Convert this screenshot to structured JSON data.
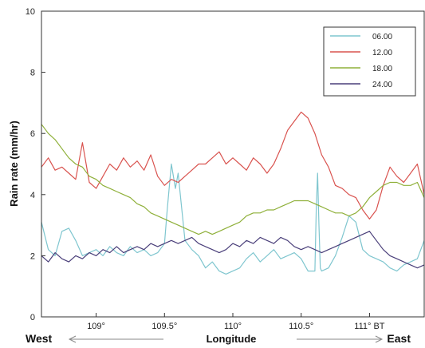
{
  "chart_data": {
    "type": "line",
    "title": "",
    "xlabel": "Longitude",
    "ylabel": "Rain rate (mm/hr)",
    "direction_west": "West",
    "direction_east": "East",
    "xlim": [
      108.6,
      111.4
    ],
    "ylim": [
      0,
      10
    ],
    "x_ticks": [
      {
        "value": 109.0,
        "label": "109°"
      },
      {
        "value": 109.5,
        "label": "109.5°"
      },
      {
        "value": 110.0,
        "label": "110°"
      },
      {
        "value": 110.5,
        "label": "110.5°"
      },
      {
        "value": 111.0,
        "label": "111° BT"
      }
    ],
    "y_ticks": [
      {
        "value": 0,
        "label": "0"
      },
      {
        "value": 2,
        "label": "2"
      },
      {
        "value": 4,
        "label": "4"
      },
      {
        "value": 6,
        "label": "6"
      },
      {
        "value": 8,
        "label": "8"
      },
      {
        "value": 10,
        "label": "10"
      }
    ],
    "grid": false,
    "legend_position": "top-right",
    "series": [
      {
        "name": "06.00",
        "color": "#7fc6cf",
        "x": [
          108.6,
          108.65,
          108.7,
          108.75,
          108.8,
          108.85,
          108.9,
          108.95,
          109.0,
          109.05,
          109.1,
          109.15,
          109.2,
          109.25,
          109.3,
          109.35,
          109.4,
          109.45,
          109.5,
          109.52,
          109.55,
          109.58,
          109.6,
          109.62,
          109.65,
          109.7,
          109.75,
          109.8,
          109.85,
          109.9,
          109.95,
          110.0,
          110.05,
          110.1,
          110.15,
          110.2,
          110.25,
          110.3,
          110.35,
          110.4,
          110.45,
          110.5,
          110.55,
          110.6,
          110.61,
          110.62,
          110.63,
          110.64,
          110.65,
          110.7,
          110.75,
          110.8,
          110.85,
          110.9,
          110.95,
          111.0,
          111.05,
          111.1,
          111.15,
          111.2,
          111.25,
          111.3,
          111.35,
          111.4
        ],
        "y": [
          3.1,
          2.2,
          2.0,
          2.8,
          2.9,
          2.5,
          2.0,
          2.1,
          2.2,
          2.0,
          2.3,
          2.1,
          2.0,
          2.3,
          2.1,
          2.2,
          2.0,
          2.1,
          2.4,
          3.5,
          5.0,
          4.2,
          4.7,
          3.8,
          2.5,
          2.2,
          2.0,
          1.6,
          1.8,
          1.5,
          1.4,
          1.5,
          1.6,
          1.9,
          2.1,
          1.8,
          2.0,
          2.2,
          1.9,
          2.0,
          2.1,
          1.9,
          1.5,
          1.5,
          3.5,
          4.7,
          3.0,
          1.6,
          1.5,
          1.6,
          2.0,
          2.6,
          3.3,
          3.1,
          2.2,
          2.0,
          1.9,
          1.8,
          1.6,
          1.5,
          1.7,
          1.8,
          1.9,
          2.5
        ]
      },
      {
        "name": "12.00",
        "color": "#d9534f",
        "x": [
          108.6,
          108.65,
          108.7,
          108.75,
          108.8,
          108.85,
          108.9,
          108.95,
          109.0,
          109.05,
          109.1,
          109.15,
          109.2,
          109.25,
          109.3,
          109.35,
          109.4,
          109.45,
          109.5,
          109.55,
          109.6,
          109.65,
          109.7,
          109.75,
          109.8,
          109.85,
          109.9,
          109.95,
          110.0,
          110.05,
          110.1,
          110.15,
          110.2,
          110.25,
          110.3,
          110.35,
          110.4,
          110.45,
          110.5,
          110.55,
          110.6,
          110.65,
          110.7,
          110.75,
          110.8,
          110.85,
          110.9,
          110.95,
          111.0,
          111.05,
          111.1,
          111.15,
          111.2,
          111.25,
          111.3,
          111.35,
          111.4
        ],
        "y": [
          4.9,
          5.2,
          4.8,
          4.9,
          4.7,
          4.5,
          5.7,
          4.4,
          4.2,
          4.6,
          5.0,
          4.8,
          5.2,
          4.9,
          5.1,
          4.8,
          5.3,
          4.6,
          4.3,
          4.5,
          4.4,
          4.6,
          4.8,
          5.0,
          5.0,
          5.2,
          5.4,
          5.0,
          5.2,
          5.0,
          4.8,
          5.2,
          5.0,
          4.7,
          5.0,
          5.5,
          6.1,
          6.4,
          6.7,
          6.5,
          6.0,
          5.3,
          4.9,
          4.3,
          4.2,
          4.0,
          3.9,
          3.5,
          3.2,
          3.5,
          4.3,
          4.9,
          4.6,
          4.4,
          4.7,
          5.0,
          4.0
        ]
      },
      {
        "name": "18.00",
        "color": "#8fb03a",
        "x": [
          108.6,
          108.65,
          108.7,
          108.75,
          108.8,
          108.85,
          108.9,
          108.95,
          109.0,
          109.05,
          109.1,
          109.15,
          109.2,
          109.25,
          109.3,
          109.35,
          109.4,
          109.45,
          109.5,
          109.55,
          109.6,
          109.65,
          109.7,
          109.75,
          109.8,
          109.85,
          109.9,
          109.95,
          110.0,
          110.05,
          110.1,
          110.15,
          110.2,
          110.25,
          110.3,
          110.35,
          110.4,
          110.45,
          110.5,
          110.55,
          110.6,
          110.65,
          110.7,
          110.75,
          110.8,
          110.85,
          110.9,
          110.95,
          111.0,
          111.05,
          111.1,
          111.15,
          111.2,
          111.25,
          111.3,
          111.35,
          111.4
        ],
        "y": [
          6.3,
          6.0,
          5.8,
          5.5,
          5.2,
          5.0,
          4.9,
          4.6,
          4.5,
          4.3,
          4.2,
          4.1,
          4.0,
          3.9,
          3.7,
          3.6,
          3.4,
          3.3,
          3.2,
          3.1,
          3.0,
          2.9,
          2.8,
          2.7,
          2.8,
          2.7,
          2.8,
          2.9,
          3.0,
          3.1,
          3.3,
          3.4,
          3.4,
          3.5,
          3.5,
          3.6,
          3.7,
          3.8,
          3.8,
          3.8,
          3.7,
          3.6,
          3.5,
          3.4,
          3.4,
          3.3,
          3.4,
          3.6,
          3.9,
          4.1,
          4.3,
          4.4,
          4.4,
          4.3,
          4.3,
          4.4,
          3.9
        ]
      },
      {
        "name": "24.00",
        "color": "#4a3f7a",
        "x": [
          108.6,
          108.65,
          108.7,
          108.75,
          108.8,
          108.85,
          108.9,
          108.95,
          109.0,
          109.05,
          109.1,
          109.15,
          109.2,
          109.25,
          109.3,
          109.35,
          109.4,
          109.45,
          109.5,
          109.55,
          109.6,
          109.65,
          109.7,
          109.75,
          109.8,
          109.85,
          109.9,
          109.95,
          110.0,
          110.05,
          110.1,
          110.15,
          110.2,
          110.25,
          110.3,
          110.35,
          110.4,
          110.45,
          110.5,
          110.55,
          110.6,
          110.65,
          110.7,
          110.75,
          110.8,
          110.85,
          110.9,
          110.95,
          111.0,
          111.05,
          111.1,
          111.15,
          111.2,
          111.25,
          111.3,
          111.35,
          111.4
        ],
        "y": [
          2.0,
          1.8,
          2.1,
          1.9,
          1.8,
          2.0,
          1.9,
          2.1,
          2.0,
          2.2,
          2.1,
          2.3,
          2.1,
          2.2,
          2.3,
          2.2,
          2.4,
          2.3,
          2.4,
          2.5,
          2.4,
          2.5,
          2.6,
          2.4,
          2.3,
          2.2,
          2.1,
          2.2,
          2.4,
          2.3,
          2.5,
          2.4,
          2.6,
          2.5,
          2.4,
          2.6,
          2.5,
          2.3,
          2.2,
          2.3,
          2.2,
          2.1,
          2.2,
          2.3,
          2.4,
          2.5,
          2.6,
          2.7,
          2.8,
          2.5,
          2.2,
          2.0,
          1.9,
          1.8,
          1.7,
          1.6,
          1.7
        ]
      }
    ]
  }
}
